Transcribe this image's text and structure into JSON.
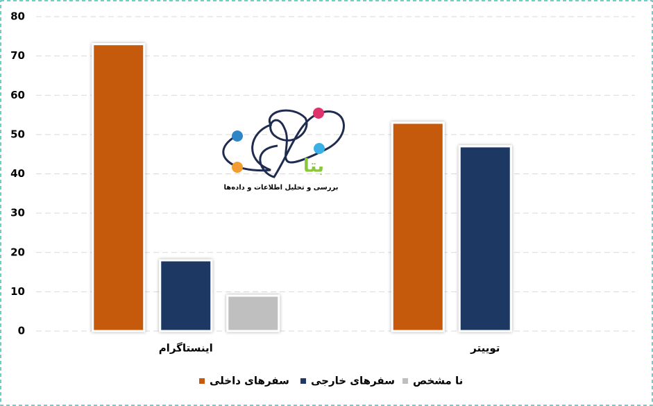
{
  "chart_data": {
    "type": "bar",
    "categories": [
      "اینستاگرام",
      "توییتر"
    ],
    "series": [
      {
        "name": "سفرهای داخلی",
        "color": "#c55a11",
        "values": [
          73,
          53
        ]
      },
      {
        "name": "سفرهای خارجی",
        "color": "#1f3864",
        "values": [
          18,
          47
        ]
      },
      {
        "name": "نا مشخص",
        "color": "#bfbfbf",
        "values": [
          9,
          null
        ]
      }
    ],
    "ylim": [
      0,
      80
    ],
    "yticks": [
      0,
      10,
      20,
      30,
      40,
      50,
      60,
      70,
      80
    ],
    "grid": true,
    "legend": "bottom",
    "logo": {
      "title": "بتا",
      "subtitle": "بررسی و تحلیل اطلاعات و داده‌ها"
    }
  }
}
